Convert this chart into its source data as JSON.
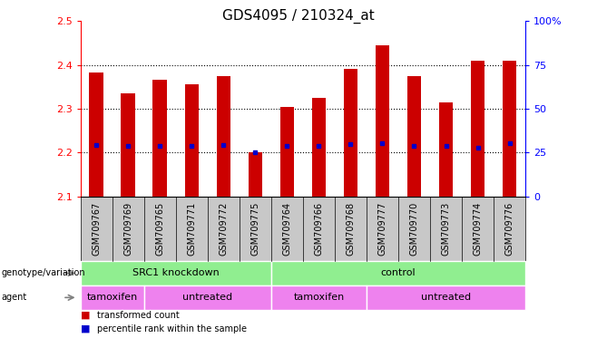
{
  "title": "GDS4095 / 210324_at",
  "samples": [
    "GSM709767",
    "GSM709769",
    "GSM709765",
    "GSM709771",
    "GSM709772",
    "GSM709775",
    "GSM709764",
    "GSM709766",
    "GSM709768",
    "GSM709777",
    "GSM709770",
    "GSM709773",
    "GSM709774",
    "GSM709776"
  ],
  "bar_tops": [
    2.383,
    2.335,
    2.365,
    2.355,
    2.375,
    2.2,
    2.305,
    2.325,
    2.39,
    2.445,
    2.375,
    2.315,
    2.41,
    2.41
  ],
  "bar_bottom": 2.1,
  "blue_dots": [
    2.218,
    2.215,
    2.215,
    2.215,
    2.218,
    2.2,
    2.215,
    2.215,
    2.22,
    2.222,
    2.215,
    2.215,
    2.212,
    2.222
  ],
  "bar_color": "#cc0000",
  "dot_color": "#0000cc",
  "ylim": [
    2.1,
    2.5
  ],
  "yticks_left": [
    2.1,
    2.2,
    2.3,
    2.4,
    2.5
  ],
  "yticks_right": [
    0,
    25,
    50,
    75,
    100
  ],
  "yticks_right_labels": [
    "0",
    "25",
    "50",
    "75",
    "100%"
  ],
  "grid_lines": [
    2.2,
    2.3,
    2.4
  ],
  "genotype_labels": [
    {
      "text": "SRC1 knockdown",
      "start": 0,
      "end": 5,
      "color": "#90ee90"
    },
    {
      "text": "control",
      "start": 6,
      "end": 13,
      "color": "#90ee90"
    }
  ],
  "agent_labels": [
    {
      "text": "tamoxifen",
      "start": 0,
      "end": 1,
      "color": "#ee82ee"
    },
    {
      "text": "untreated",
      "start": 2,
      "end": 5,
      "color": "#ee82ee"
    },
    {
      "text": "tamoxifen",
      "start": 6,
      "end": 8,
      "color": "#ee82ee"
    },
    {
      "text": "untreated",
      "start": 9,
      "end": 13,
      "color": "#ee82ee"
    }
  ],
  "legend_entries": [
    {
      "label": "transformed count",
      "color": "#cc0000"
    },
    {
      "label": "percentile rank within the sample",
      "color": "#0000cc"
    }
  ],
  "bar_width": 0.45,
  "background_color": "#ffffff",
  "title_fontsize": 11,
  "tick_fontsize": 8,
  "sample_label_fontsize": 7,
  "annotation_fontsize": 8
}
